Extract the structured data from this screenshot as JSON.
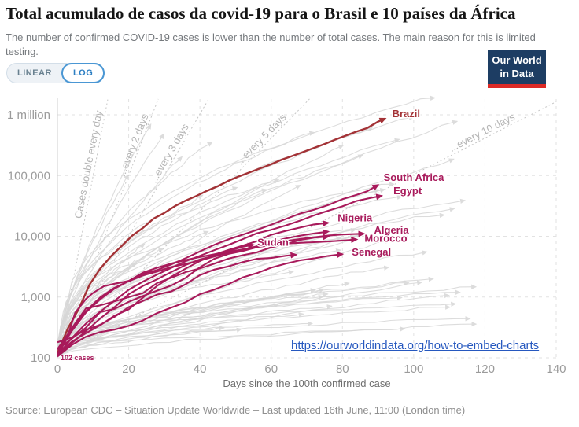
{
  "header": {
    "title": "Total acumulado de casos da covid-19 para o Brasil e 10 países da África",
    "subtitle": "The number of confirmed COVID-19 cases is lower than the number of total cases. The main reason for this is limited testing.",
    "scale_toggle": {
      "linear_label": "LINEAR",
      "log_label": "LOG",
      "selected": "LOG"
    },
    "logo": {
      "line1": "Our World",
      "line2": "in Data"
    }
  },
  "colors": {
    "brazil": "#a33236",
    "africa": "#a81a5b",
    "grid": "#e2e2e2",
    "axis_line": "#cfcfcf",
    "guide": "#c6c6c6",
    "background_line": "#d7d7d7",
    "link": "#2658bf",
    "logo_bg": "#1d3d63",
    "logo_red": "#dc2a26"
  },
  "embed_link": {
    "text": "https://ourworldindata.org/how-to-embed-charts"
  },
  "footer": {
    "source": "Source: European CDC – Situation Update Worldwide – Last updated 16th June, 11:00 (London time)"
  },
  "chart_data": {
    "type": "line",
    "x_axis": {
      "label": "Days since the 100th confirmed case",
      "ticks": [
        0,
        20,
        40,
        60,
        80,
        100,
        120,
        140
      ],
      "range": [
        0,
        140
      ]
    },
    "y_axis": {
      "scale": "log",
      "tick_labels": [
        "1 million",
        "100,000",
        "10,000",
        "1,000",
        "100"
      ],
      "tick_values": [
        1000000,
        100000,
        10000,
        1000,
        100
      ],
      "range": [
        100,
        2000000
      ],
      "grid": "dashed"
    },
    "start_annotation": "102 cases",
    "doubling_guides": [
      {
        "label": "Cases double every day",
        "days": 1,
        "label_day": 10.5
      },
      {
        "label": "...every 2 days",
        "days": 2,
        "label_day": 23
      },
      {
        "label": "...every 3 days",
        "days": 3,
        "label_day": 33
      },
      {
        "label": "...every 5 days",
        "days": 5,
        "label_day": 58.5
      },
      {
        "label": "...every 10 days",
        "days": 10,
        "label_day": 120
      }
    ],
    "series": [
      {
        "name": "brazil",
        "label": "Brazil",
        "show_label": true,
        "palette": "brazil",
        "label_offset": [
          9,
          -6
        ],
        "points": [
          [
            0,
            120
          ],
          [
            3,
            310
          ],
          [
            6,
            640
          ],
          [
            9,
            1600
          ],
          [
            12,
            2920
          ],
          [
            15,
            4680
          ],
          [
            18,
            6880
          ],
          [
            21,
            10280
          ],
          [
            24,
            13720
          ],
          [
            27,
            19640
          ],
          [
            30,
            24230
          ],
          [
            33,
            31400
          ],
          [
            36,
            38700
          ],
          [
            39,
            46200
          ],
          [
            42,
            56100
          ],
          [
            45,
            66500
          ],
          [
            48,
            82100
          ],
          [
            51,
            97100
          ],
          [
            54,
            113000
          ],
          [
            57,
            131600
          ],
          [
            60,
            153200
          ],
          [
            63,
            182800
          ],
          [
            66,
            211000
          ],
          [
            69,
            244200
          ],
          [
            72,
            285000
          ],
          [
            75,
            331000
          ],
          [
            78,
            391200
          ],
          [
            81,
            455600
          ],
          [
            84,
            529400
          ],
          [
            87,
            608500
          ],
          [
            90,
            772400
          ],
          [
            92,
            867600
          ]
        ]
      },
      {
        "name": "south-africa",
        "label": "South Africa",
        "show_label": true,
        "palette": "africa",
        "label_offset": [
          7,
          -9
        ],
        "points": [
          [
            0,
            116
          ],
          [
            3,
            240
          ],
          [
            5,
            554
          ],
          [
            8,
            927
          ],
          [
            10,
            1170
          ],
          [
            13,
            1505
          ],
          [
            16,
            1655
          ],
          [
            20,
            1845
          ],
          [
            24,
            2415
          ],
          [
            28,
            2783
          ],
          [
            32,
            3465
          ],
          [
            36,
            4361
          ],
          [
            40,
            5647
          ],
          [
            44,
            7220
          ],
          [
            48,
            8895
          ],
          [
            52,
            10652
          ],
          [
            56,
            12739
          ],
          [
            60,
            15515
          ],
          [
            64,
            19137
          ],
          [
            68,
            23615
          ],
          [
            72,
            27403
          ],
          [
            76,
            32683
          ],
          [
            80,
            40792
          ],
          [
            84,
            48285
          ],
          [
            87,
            55421
          ],
          [
            90,
            70038
          ]
        ]
      },
      {
        "name": "egypt",
        "label": "Egypt",
        "show_label": true,
        "palette": "africa",
        "label_offset": [
          15,
          -6
        ],
        "points": [
          [
            0,
            110
          ],
          [
            4,
            210
          ],
          [
            8,
            366
          ],
          [
            12,
            576
          ],
          [
            16,
            865
          ],
          [
            20,
            1322
          ],
          [
            24,
            1794
          ],
          [
            28,
            2350
          ],
          [
            32,
            3032
          ],
          [
            36,
            3891
          ],
          [
            40,
            4782
          ],
          [
            44,
            5895
          ],
          [
            48,
            7201
          ],
          [
            52,
            8964
          ],
          [
            56,
            11228
          ],
          [
            60,
            12764
          ],
          [
            64,
            15003
          ],
          [
            68,
            17967
          ],
          [
            72,
            22082
          ],
          [
            76,
            26384
          ],
          [
            80,
            31115
          ],
          [
            84,
            38284
          ],
          [
            88,
            42980
          ],
          [
            91,
            46289
          ]
        ]
      },
      {
        "name": "nigeria",
        "label": "Nigeria",
        "show_label": true,
        "palette": "africa",
        "label_offset": [
          12,
          -6
        ],
        "points": [
          [
            0,
            111
          ],
          [
            4,
            184
          ],
          [
            8,
            254
          ],
          [
            12,
            343
          ],
          [
            16,
            493
          ],
          [
            20,
            627
          ],
          [
            24,
            981
          ],
          [
            28,
            1532
          ],
          [
            32,
            2170
          ],
          [
            36,
            2950
          ],
          [
            40,
            3912
          ],
          [
            44,
            4971
          ],
          [
            48,
            5959
          ],
          [
            52,
            7016
          ],
          [
            56,
            8344
          ],
          [
            60,
            10578
          ],
          [
            64,
            12233
          ],
          [
            68,
            13873
          ],
          [
            72,
            15682
          ],
          [
            76,
            16658
          ]
        ]
      },
      {
        "name": "algeria",
        "label": "Algeria",
        "show_label": true,
        "palette": "africa",
        "label_offset": [
          13,
          -4
        ],
        "points": [
          [
            0,
            139
          ],
          [
            4,
            302
          ],
          [
            8,
            584
          ],
          [
            12,
            986
          ],
          [
            16,
            1423
          ],
          [
            20,
            1825
          ],
          [
            24,
            2268
          ],
          [
            28,
            2629
          ],
          [
            32,
            3127
          ],
          [
            36,
            3517
          ],
          [
            40,
            4006
          ],
          [
            44,
            4648
          ],
          [
            48,
            5369
          ],
          [
            52,
            6067
          ],
          [
            56,
            6821
          ],
          [
            60,
            7542
          ],
          [
            64,
            8306
          ],
          [
            68,
            8997
          ],
          [
            72,
            9626
          ],
          [
            76,
            10265
          ],
          [
            80,
            10698
          ],
          [
            86,
            11031
          ]
        ]
      },
      {
        "name": "morocco",
        "label": "Morocco",
        "show_label": true,
        "palette": "africa",
        "label_offset": [
          10,
          -1
        ],
        "points": [
          [
            0,
            115
          ],
          [
            4,
            275
          ],
          [
            8,
            556
          ],
          [
            12,
            919
          ],
          [
            16,
            1374
          ],
          [
            20,
            1838
          ],
          [
            24,
            2528
          ],
          [
            28,
            3046
          ],
          [
            32,
            3568
          ],
          [
            36,
            4065
          ],
          [
            40,
            4569
          ],
          [
            44,
            5053
          ],
          [
            48,
            5548
          ],
          [
            52,
            6063
          ],
          [
            56,
            6652
          ],
          [
            60,
            7133
          ],
          [
            64,
            7577
          ],
          [
            68,
            7807
          ],
          [
            72,
            8003
          ],
          [
            76,
            8224
          ],
          [
            80,
            8508
          ],
          [
            84,
            8885
          ]
        ]
      },
      {
        "name": "sudan",
        "label": "Sudan",
        "show_label": true,
        "palette": "africa",
        "label_offset": [
          5,
          -3
        ],
        "points": [
          [
            0,
            107
          ],
          [
            4,
            174
          ],
          [
            8,
            275
          ],
          [
            12,
            442
          ],
          [
            16,
            678
          ],
          [
            20,
            1111
          ],
          [
            24,
            1526
          ],
          [
            28,
            1964
          ],
          [
            32,
            2591
          ],
          [
            36,
            3378
          ],
          [
            40,
            4146
          ],
          [
            44,
            4800
          ],
          [
            48,
            5714
          ],
          [
            52,
            6730
          ],
          [
            55,
            7220
          ]
        ]
      },
      {
        "name": "senegal",
        "label": "Senegal",
        "show_label": true,
        "palette": "africa",
        "label_offset": [
          12,
          -2
        ],
        "points": [
          [
            0,
            105
          ],
          [
            4,
            162
          ],
          [
            8,
            222
          ],
          [
            12,
            265
          ],
          [
            16,
            291
          ],
          [
            20,
            335
          ],
          [
            24,
            412
          ],
          [
            28,
            545
          ],
          [
            32,
            671
          ],
          [
            36,
            823
          ],
          [
            40,
            1115
          ],
          [
            44,
            1329
          ],
          [
            48,
            1634
          ],
          [
            52,
            2105
          ],
          [
            56,
            2480
          ],
          [
            60,
            3047
          ],
          [
            64,
            3535
          ],
          [
            68,
            4021
          ],
          [
            72,
            4328
          ],
          [
            76,
            4759
          ],
          [
            80,
            5090
          ]
        ]
      },
      {
        "name": "highlighted-unlabeled-1",
        "label": "",
        "show_label": false,
        "palette": "africa",
        "label_offset": [
          0,
          0
        ],
        "points": [
          [
            0,
            137
          ],
          [
            4,
            205
          ],
          [
            8,
            313
          ],
          [
            12,
            566
          ],
          [
            16,
            636
          ],
          [
            20,
            834
          ],
          [
            24,
            1042
          ],
          [
            28,
            1279
          ],
          [
            32,
            1550
          ],
          [
            36,
            2074
          ],
          [
            40,
            3091
          ],
          [
            44,
            4263
          ],
          [
            48,
            5127
          ],
          [
            52,
            5735
          ],
          [
            56,
            6617
          ],
          [
            60,
            8070
          ],
          [
            64,
            9168
          ],
          [
            68,
            10201
          ],
          [
            72,
            11118
          ],
          [
            76,
            11964
          ]
        ]
      },
      {
        "name": "highlighted-unlabeled-2",
        "label": "",
        "show_label": false,
        "palette": "africa",
        "label_offset": [
          0,
          0
        ],
        "points": [
          [
            0,
            105
          ],
          [
            4,
            306
          ],
          [
            8,
            650
          ],
          [
            12,
            730
          ],
          [
            16,
            848
          ],
          [
            20,
            996
          ],
          [
            24,
            1163
          ],
          [
            28,
            1705
          ],
          [
            32,
            2077
          ],
          [
            36,
            2579
          ],
          [
            40,
            2954
          ],
          [
            44,
            3529
          ],
          [
            48,
            4288
          ],
          [
            52,
            4890
          ],
          [
            56,
            5436
          ],
          [
            60,
            6585
          ],
          [
            64,
            7392
          ],
          [
            68,
            8681
          ],
          [
            72,
            9513
          ],
          [
            76,
            9864
          ]
        ]
      },
      {
        "name": "highlighted-unlabeled-3",
        "label": "",
        "show_label": false,
        "palette": "africa",
        "label_offset": [
          0,
          0
        ],
        "points": [
          [
            0,
            180
          ],
          [
            4,
            215
          ],
          [
            8,
            287
          ],
          [
            12,
            350
          ],
          [
            16,
            471
          ],
          [
            20,
            682
          ],
          [
            24,
            863
          ],
          [
            28,
            1102
          ],
          [
            32,
            1242
          ],
          [
            36,
            1629
          ],
          [
            40,
            2297
          ],
          [
            44,
            2833
          ],
          [
            48,
            3195
          ],
          [
            52,
            3764
          ],
          [
            56,
            4259
          ],
          [
            60,
            4390
          ],
          [
            64,
            4778
          ],
          [
            67,
            4974
          ]
        ]
      }
    ],
    "background_series": {
      "count": 60,
      "seed": 11,
      "day_min": 18,
      "day_max": 118,
      "log_min": 2.45,
      "log_max": 5.9,
      "notable": [
        {
          "end_day": 106,
          "end_log": 6.31,
          "shape": 0.4
        },
        {
          "end_day": 100,
          "end_log": 5.98,
          "shape": 0.45
        },
        {
          "end_day": 96,
          "end_log": 5.6,
          "shape": 0.5
        }
      ]
    }
  }
}
